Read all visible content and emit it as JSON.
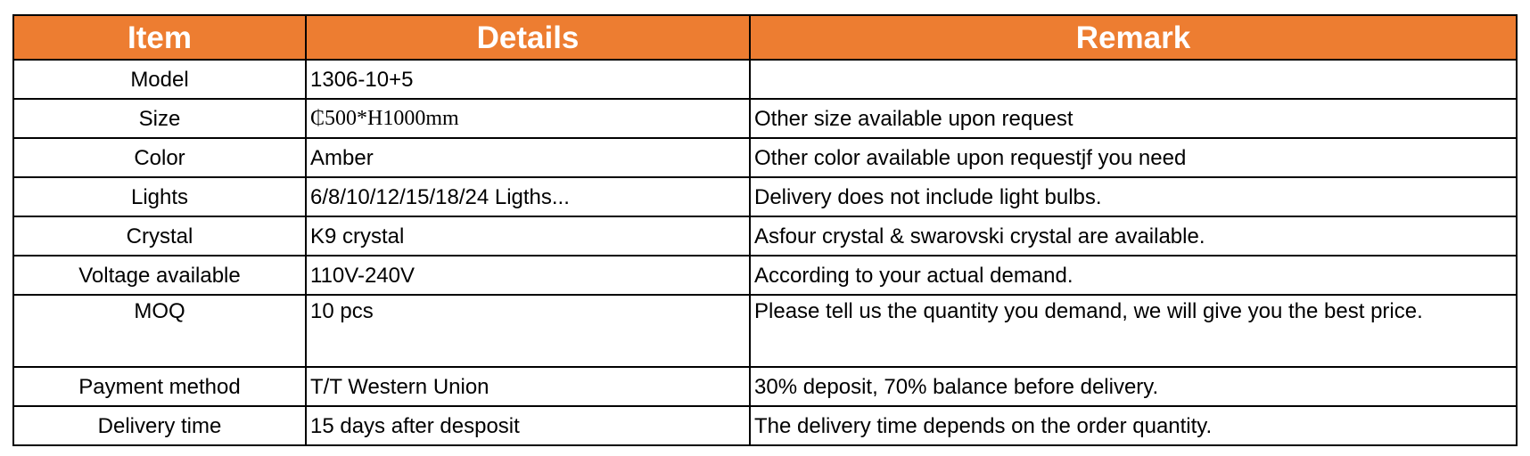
{
  "header": {
    "item": "Item",
    "details": "Details",
    "remark": "Remark"
  },
  "header_color": "#ED7D31",
  "rows": [
    {
      "item": "Model",
      "details": "1306-10+5",
      "remark": ""
    },
    {
      "item": "Size",
      "details": "₵500*H1000mm",
      "remark": "Other size available upon request"
    },
    {
      "item": "Color",
      "details": "Amber",
      "remark": "Other color available upon requestjf you need"
    },
    {
      "item": "Lights",
      "details": "6/8/10/12/15/18/24 Ligths...",
      "remark": "Delivery does not include light bulbs."
    },
    {
      "item": "Crystal",
      "details": "K9 crystal",
      "remark": "Asfour crystal & swarovski crystal are available."
    },
    {
      "item": "Voltage available",
      "details": "110V-240V",
      "remark": "According to your actual demand."
    },
    {
      "item": "MOQ",
      "details": "10 pcs",
      "remark": "Please tell us the quantity you demand, we will give you the best price."
    },
    {
      "item": "Payment method",
      "details": "T/T Western Union",
      "remark": "30% deposit, 70% balance before delivery."
    },
    {
      "item": "Delivery time",
      "details": "15 days after desposit",
      "remark": "The delivery time depends on the order quantity."
    }
  ]
}
